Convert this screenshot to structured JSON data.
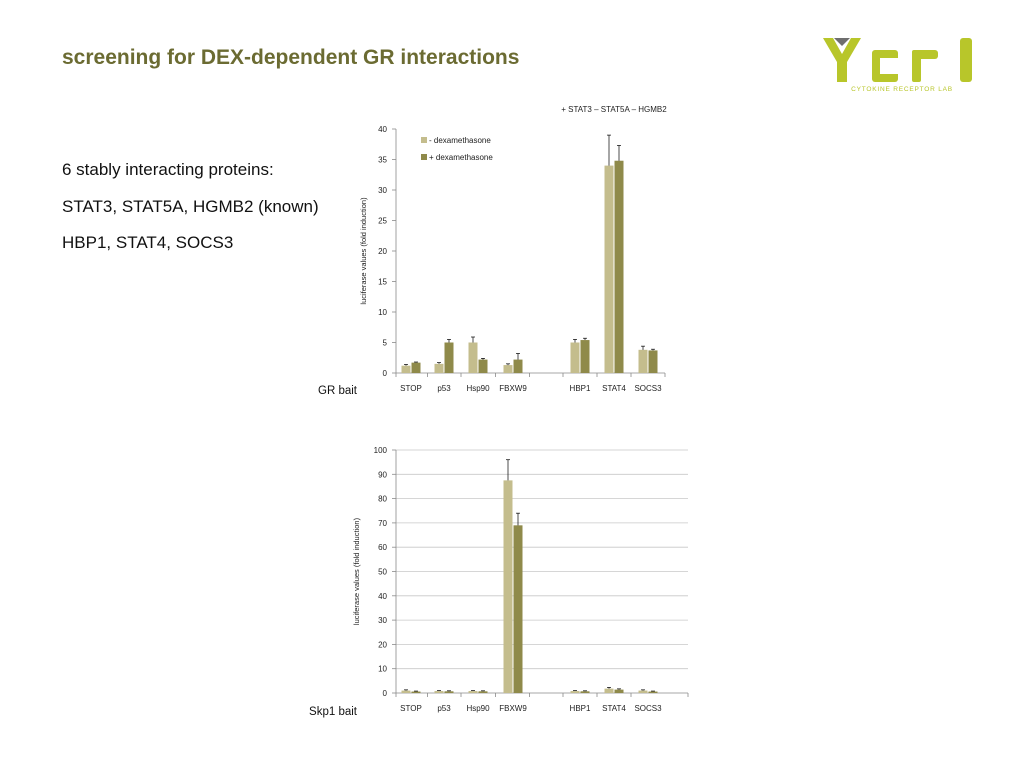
{
  "slide": {
    "title": "screening for DEX-dependent GR interactions",
    "body_lines": [
      "6 stably interacting proteins:",
      "STAT3, STAT5A, HGMB2 (known)",
      "HBP1, STAT4, SOCS3"
    ],
    "logo_text": "CYTOKINE RECEPTOR LAB"
  },
  "colors": {
    "title": "#6b6b32",
    "minus_dex": "#c4bd8d",
    "plus_dex": "#8f8a4a",
    "logo_green": "#b8c62a",
    "logo_gray": "#6e6e6e",
    "grid": "#c8c8c8"
  },
  "chart_data": [
    {
      "type": "bar",
      "side_label": "GR bait",
      "annotation": "+ STAT3 – STAT5A – HGMB2",
      "ylabel": "luciferase values (fold induction)",
      "categories": [
        "STOP",
        "p53",
        "Hsp90",
        "FBXW9",
        "",
        "HBP1",
        "STAT4",
        "SOCS3"
      ],
      "ylim": [
        0,
        40
      ],
      "yticks": [
        0,
        5,
        10,
        15,
        20,
        25,
        30,
        35,
        40
      ],
      "grid": false,
      "legend": "top-left",
      "series": [
        {
          "name": "- dexamethasone",
          "values": [
            1.2,
            1.5,
            5.0,
            1.3,
            null,
            5.0,
            34.0,
            3.8
          ],
          "errors": [
            0.2,
            0.2,
            0.9,
            0.2,
            null,
            0.5,
            5.0,
            0.6
          ]
        },
        {
          "name": "+ dexamethasone",
          "values": [
            1.7,
            5.0,
            2.2,
            2.2,
            null,
            5.4,
            34.8,
            3.7
          ],
          "errors": [
            0.1,
            0.5,
            0.2,
            1.0,
            null,
            0.3,
            2.5,
            0.2
          ]
        }
      ]
    },
    {
      "type": "bar",
      "side_label": "Skp1 bait",
      "ylabel": "luciferase values (fold induction)",
      "categories": [
        "STOP",
        "p53",
        "Hsp90",
        "FBXW9",
        "",
        "HBP1",
        "STAT4",
        "SOCS3"
      ],
      "ylim": [
        0,
        100
      ],
      "yticks": [
        0,
        10,
        20,
        30,
        40,
        50,
        60,
        70,
        80,
        90,
        100
      ],
      "grid": true,
      "series": [
        {
          "values": [
            1.0,
            0.8,
            0.8,
            87.5,
            null,
            0.8,
            1.8,
            1.0
          ],
          "errors": [
            0.3,
            0.2,
            0.2,
            8.5,
            null,
            0.2,
            0.5,
            0.3
          ]
        },
        {
          "values": [
            0.6,
            0.7,
            0.7,
            69.0,
            null,
            0.7,
            1.4,
            0.6
          ],
          "errors": [
            0.2,
            0.2,
            0.2,
            5.0,
            null,
            0.2,
            0.3,
            0.2
          ]
        }
      ]
    }
  ]
}
